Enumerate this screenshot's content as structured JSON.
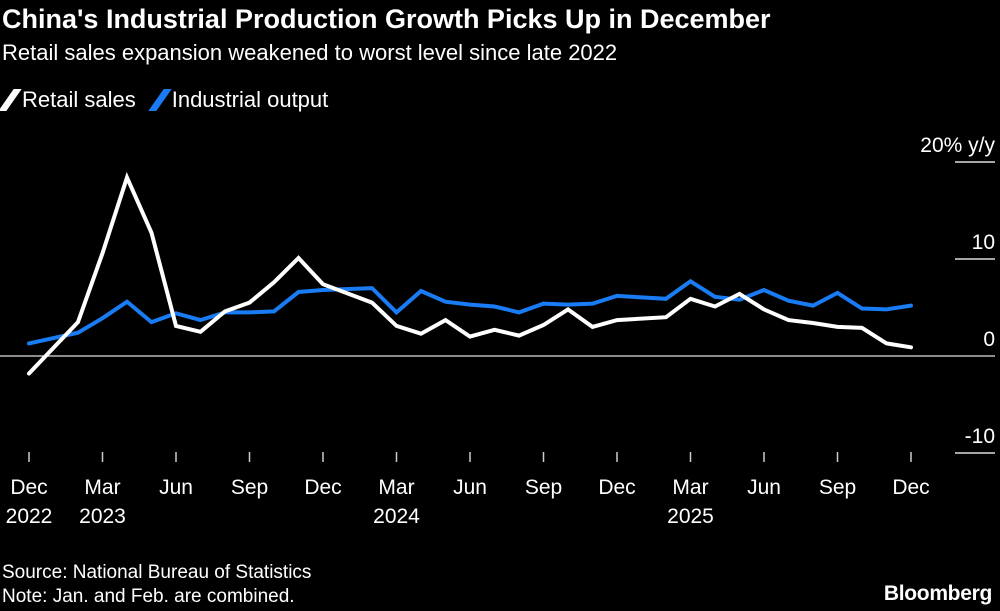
{
  "title": "China's Industrial Production Growth Picks Up in December",
  "subtitle": "Retail sales expansion weakened to worst level since late 2022",
  "footer": {
    "source": "Source: National Bureau of Statistics",
    "note": "Note: Jan. and Feb. are combined.",
    "logo": "Bloomberg"
  },
  "chart_data": {
    "type": "line",
    "title": "China's Industrial Production Growth Picks Up in December",
    "ylabel_unit": "% y/y",
    "ylim": [
      -10,
      20
    ],
    "yticks": [
      {
        "value": 20,
        "label": "20% y/y"
      },
      {
        "value": 10,
        "label": "10"
      },
      {
        "value": 0,
        "label": "0"
      },
      {
        "value": -10,
        "label": "-10"
      }
    ],
    "xlim": [
      "2022-12",
      "2025-12"
    ],
    "xticks": [
      {
        "date": "2022-12",
        "label": "Dec",
        "year": "2022"
      },
      {
        "date": "2023-03",
        "label": "Mar",
        "year": "2023"
      },
      {
        "date": "2023-06",
        "label": "Jun",
        "year": ""
      },
      {
        "date": "2023-09",
        "label": "Sep",
        "year": ""
      },
      {
        "date": "2023-12",
        "label": "Dec",
        "year": ""
      },
      {
        "date": "2024-03",
        "label": "Mar",
        "year": "2024"
      },
      {
        "date": "2024-06",
        "label": "Jun",
        "year": ""
      },
      {
        "date": "2024-09",
        "label": "Sep",
        "year": ""
      },
      {
        "date": "2024-12",
        "label": "Dec",
        "year": ""
      },
      {
        "date": "2025-03",
        "label": "Mar",
        "year": "2025"
      },
      {
        "date": "2025-06",
        "label": "Jun",
        "year": ""
      },
      {
        "date": "2025-09",
        "label": "Sep",
        "year": ""
      },
      {
        "date": "2025-12",
        "label": "Dec",
        "year": ""
      }
    ],
    "grid": false,
    "legend_placement": "top-left",
    "x": [
      "2022-12",
      "2023-02",
      "2023-03",
      "2023-04",
      "2023-05",
      "2023-06",
      "2023-07",
      "2023-08",
      "2023-09",
      "2023-10",
      "2023-11",
      "2023-12",
      "2024-02",
      "2024-03",
      "2024-04",
      "2024-05",
      "2024-06",
      "2024-07",
      "2024-08",
      "2024-09",
      "2024-10",
      "2024-11",
      "2024-12",
      "2025-02",
      "2025-03",
      "2025-04",
      "2025-05",
      "2025-06",
      "2025-07",
      "2025-08",
      "2025-09",
      "2025-10",
      "2025-11",
      "2025-12"
    ],
    "series": [
      {
        "name": "Retail sales",
        "color": "#ffffff",
        "values": [
          -1.8,
          3.5,
          10.6,
          18.4,
          12.7,
          3.1,
          2.5,
          4.6,
          5.5,
          7.6,
          10.1,
          7.4,
          5.5,
          3.1,
          2.3,
          3.7,
          2.0,
          2.7,
          2.1,
          3.2,
          4.8,
          3.0,
          3.7,
          4.0,
          5.9,
          5.1,
          6.4,
          4.8,
          3.7,
          3.4,
          3.0,
          2.9,
          1.3,
          0.9
        ]
      },
      {
        "name": "Industrial output",
        "color": "#1a7cf5",
        "values": [
          1.3,
          2.4,
          3.9,
          5.6,
          3.5,
          4.4,
          3.7,
          4.5,
          4.5,
          4.6,
          6.6,
          6.8,
          7.0,
          4.5,
          6.7,
          5.6,
          5.3,
          5.1,
          4.5,
          5.4,
          5.3,
          5.4,
          6.2,
          5.9,
          7.7,
          6.1,
          5.8,
          6.8,
          5.7,
          5.2,
          6.5,
          4.9,
          4.8,
          5.2
        ]
      }
    ]
  }
}
